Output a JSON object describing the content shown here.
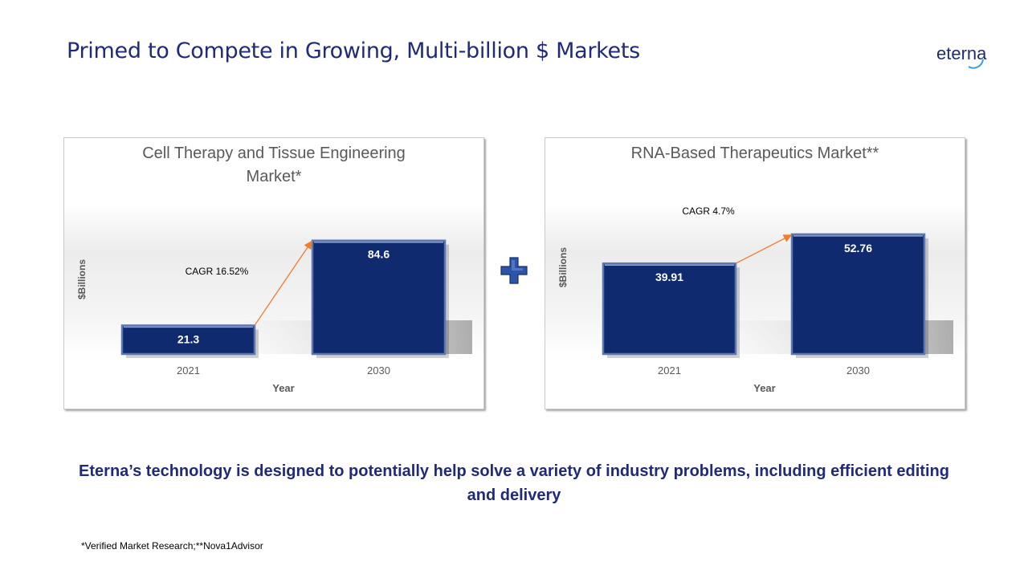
{
  "slide": {
    "title": "Primed to Compete in Growing, Multi-billion $ Markets",
    "logo_text": "eterna",
    "tagline": "Eterna’s technology is designed to potentially help solve a variety of industry problems, including efficient editing and delivery",
    "footnote": "*Verified Market Research;**Nova1Advisor"
  },
  "colors": {
    "title": "#1f2a78",
    "bar": "#0f2a6e",
    "bar_edge": "#5d77b0",
    "arrow": "#ed7d31",
    "logo_arc": "#3aa0d8",
    "plus": "#2d54a8"
  },
  "icons": {
    "combine": "plus-icon"
  },
  "chart_data": [
    {
      "type": "bar",
      "title": "Cell Therapy and Tissue Engineering Market*",
      "title_lines": [
        "Cell Therapy and Tissue Engineering",
        "Market*"
      ],
      "categories": [
        "2021",
        "2030"
      ],
      "values": [
        21.3,
        84.6
      ],
      "value_labels": [
        "21.3",
        "84.6"
      ],
      "xlabel": "Year",
      "ylabel": "$Billions",
      "ylim": [
        0,
        100
      ],
      "annotation": "CAGR 16.52%",
      "grid": false,
      "legend": "none"
    },
    {
      "type": "bar",
      "title": "RNA-Based Therapeutics Market**",
      "title_lines": [
        "RNA-Based Therapeutics Market**"
      ],
      "categories": [
        "2021",
        "2030"
      ],
      "values": [
        39.91,
        52.76
      ],
      "value_labels": [
        "39.91",
        "52.76"
      ],
      "xlabel": "Year",
      "ylabel": "$Billions",
      "ylim": [
        0,
        75
      ],
      "annotation": "CAGR 4.7%",
      "grid": false,
      "legend": "none"
    }
  ]
}
